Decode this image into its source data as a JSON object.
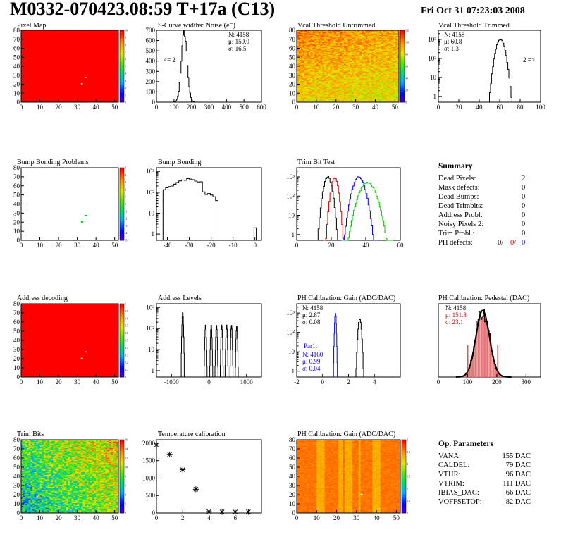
{
  "header": {
    "title": "M0332-070423.08:59 T+17a (C13)",
    "date": "Fri Oct 31 07:23:03 2008"
  },
  "colors": {
    "hot": "#ff0000",
    "blue": "#0000ff",
    "green": "#00cc00",
    "red": "#cc0000",
    "black": "#000000"
  },
  "chart_data": [
    {
      "id": "pixel-map",
      "type": "heatmap",
      "title": "Pixel Map",
      "xlim": [
        0,
        52
      ],
      "ylim": [
        0,
        80
      ],
      "xticks": [
        "0",
        "10",
        "20",
        "30",
        "40",
        "50"
      ],
      "yticks": [
        "0",
        "10",
        "20",
        "30",
        "40",
        "50",
        "60",
        "70",
        "80"
      ],
      "zlim": [
        0,
        10
      ],
      "fill_value": 10,
      "special_pixels": [
        {
          "x": 32,
          "y": 20,
          "value": 0
        },
        {
          "x": 34,
          "y": 27,
          "value": 0
        }
      ],
      "palette_ticks": [
        "0",
        "1",
        "2",
        "3",
        "4",
        "5",
        "6",
        "7",
        "8",
        "9",
        "10"
      ]
    },
    {
      "id": "scurve-noise",
      "type": "histogram",
      "title": "S-Curve widths: Noise (e⁻)",
      "xlim": [
        0,
        600
      ],
      "ylim": [
        0,
        700
      ],
      "xticks": [
        "0",
        "100",
        "200",
        "300",
        "400",
        "500",
        "600"
      ],
      "yticks": [
        "0",
        "100",
        "200",
        "300",
        "400",
        "500",
        "600",
        "700"
      ],
      "stats": {
        "N": "4158",
        "mu": "159.0",
        "sigma": "16.5"
      },
      "underflow_label": "<= 2",
      "peak": {
        "mean": 159.0,
        "sigma": 16.5,
        "max": 680
      }
    },
    {
      "id": "vcal-untrimmed",
      "type": "heatmap",
      "title": "Vcal Threshold Untrimmed",
      "xlim": [
        0,
        52
      ],
      "ylim": [
        0,
        80
      ],
      "xticks": [
        "0",
        "10",
        "20",
        "30",
        "40",
        "50"
      ],
      "yticks": [
        "0",
        "10",
        "20",
        "30",
        "40",
        "50",
        "60",
        "70",
        "80"
      ],
      "zlim": [
        0,
        130
      ],
      "palette_ticks": [
        "0",
        "20",
        "40",
        "60",
        "80",
        "100",
        "120"
      ]
    },
    {
      "id": "vcal-trimmed",
      "type": "histogram",
      "title": "Vcal Threshold Trimmed",
      "log_y": true,
      "xlim": [
        0,
        100
      ],
      "ylim": [
        0.5,
        3000
      ],
      "xticks": [
        "0",
        "20",
        "40",
        "60",
        "80",
        "100"
      ],
      "ytick_labels": [
        "1",
        "10",
        "10²",
        "10³"
      ],
      "stats": {
        "N": "4158",
        "mu": "60.8",
        "sigma": "1.3"
      },
      "overflow_label": "2 =>",
      "peak": {
        "mean": 60.8,
        "sigma": 1.3,
        "max": 1000
      }
    },
    {
      "id": "bump-bonding-problems",
      "type": "heatmap",
      "title": "Bump Bonding Problems",
      "xlim": [
        0,
        52
      ],
      "ylim": [
        0,
        80
      ],
      "xticks": [
        "0",
        "10",
        "20",
        "30",
        "40",
        "50"
      ],
      "yticks": [
        "0",
        "10",
        "20",
        "30",
        "40",
        "50",
        "60",
        "70",
        "80"
      ],
      "zlim": [
        -5,
        5
      ],
      "fill_value": null,
      "special_pixels": [
        {
          "x": 32,
          "y": 20,
          "value": 0
        },
        {
          "x": 34,
          "y": 27,
          "value": 0
        }
      ],
      "palette_ticks": [
        "-5",
        "-4",
        "-3",
        "-2",
        "-1",
        "0",
        "1",
        "2",
        "3",
        "4",
        "5"
      ]
    },
    {
      "id": "bump-bonding",
      "type": "histogram",
      "title": "Bump Bonding",
      "log_y": true,
      "xlim": [
        -45,
        3
      ],
      "ylim": [
        0.5,
        1500
      ],
      "xticks": [
        "-40",
        "-30",
        "-20",
        "-10",
        "0"
      ],
      "ytick_labels": [
        "1",
        "10",
        "10²",
        "10³"
      ],
      "broad": {
        "lo": -42,
        "hi": -17,
        "max": 400
      },
      "spike": {
        "x": 0,
        "value": 2
      }
    },
    {
      "id": "trim-bit-test",
      "type": "histogram",
      "title": "Trim Bit Test",
      "log_y": true,
      "xlim": [
        0,
        60
      ],
      "ylim": [
        0.5,
        3000
      ],
      "xticks": [
        "0",
        "20",
        "40",
        "60"
      ],
      "ytick_labels": [
        "1",
        "10",
        "10²",
        "10³"
      ],
      "series": [
        {
          "color": "#000000",
          "mean": 18,
          "sigma": 1.5,
          "max": 1000
        },
        {
          "color": "#cc0000",
          "mean": 22,
          "sigma": 1.3,
          "max": 900
        },
        {
          "color": "#0000ff",
          "mean": 36,
          "sigma": 2.2,
          "max": 1000
        },
        {
          "color": "#00cc00",
          "mean": 41,
          "sigma": 3.0,
          "max": 500
        }
      ]
    },
    {
      "id": "address-decoding",
      "type": "heatmap",
      "title": "Address decoding",
      "xlim": [
        0,
        52
      ],
      "ylim": [
        0,
        80
      ],
      "xticks": [
        "0",
        "10",
        "20",
        "30",
        "40",
        "50"
      ],
      "yticks": [
        "0",
        "10",
        "20",
        "30",
        "40",
        "50",
        "60",
        "70",
        "80"
      ],
      "zlim": [
        0,
        1
      ],
      "fill_value": 1,
      "special_pixels": [
        {
          "x": 32,
          "y": 20,
          "value": 0
        },
        {
          "x": 34,
          "y": 27,
          "value": 0
        }
      ],
      "palette_ticks": [
        "0",
        "0.1",
        "0.2",
        "0.3",
        "0.4",
        "0.5",
        "0.6",
        "0.7",
        "0.8",
        "0.9",
        "1"
      ]
    },
    {
      "id": "address-levels",
      "type": "histogram",
      "title": "Address Levels",
      "log_y": true,
      "xlim": [
        -1400,
        1400
      ],
      "ylim": [
        0.5,
        1500
      ],
      "xticks": [
        "-1000",
        "0",
        "1000"
      ],
      "ytick_labels": [
        "1",
        "10",
        "10²",
        "10³"
      ],
      "peaks": [
        {
          "x": -700,
          "max": 600
        },
        {
          "x": -90,
          "max": 150
        },
        {
          "x": 60,
          "max": 150
        },
        {
          "x": 200,
          "max": 150
        },
        {
          "x": 340,
          "max": 150
        },
        {
          "x": 470,
          "max": 150
        },
        {
          "x": 600,
          "max": 150
        },
        {
          "x": 740,
          "max": 130
        }
      ]
    },
    {
      "id": "ph-gain",
      "type": "histogram",
      "title": "PH Calibration: Gain (ADC/DAC)",
      "log_y": true,
      "xlim": [
        -2,
        6
      ],
      "ylim": [
        0.5,
        3000
      ],
      "xticks": [
        "-2",
        "0",
        "2",
        "4"
      ],
      "ytick_labels": [
        "1",
        "10",
        "10²",
        "10³"
      ],
      "stats": {
        "N": "4158",
        "mu": "2.87",
        "sigma": "0.08"
      },
      "par1": {
        "label": "Par1:",
        "N": "4160",
        "mu": "0.99",
        "sigma": "0.04"
      },
      "series": [
        {
          "color": "#000000",
          "mean": 2.87,
          "sigma": 0.08,
          "max": 500
        },
        {
          "color": "#0000ff",
          "mean": 0.99,
          "sigma": 0.04,
          "max": 1000
        }
      ]
    },
    {
      "id": "ph-pedestal",
      "type": "histogram",
      "title": "PH Calibration: Pedestal (DAC)",
      "xlim": [
        0,
        350
      ],
      "ylim": [
        0,
        220
      ],
      "xticks": [
        "0",
        "100",
        "200",
        "300"
      ],
      "stats": {
        "N": "4158",
        "mu": "151.8",
        "sigma": "23.1"
      },
      "peak": {
        "mean": 151.8,
        "sigma": 23.1,
        "max": 200
      },
      "markers": [
        101,
        203
      ]
    },
    {
      "id": "trim-bits",
      "type": "heatmap",
      "title": "Trim Bits",
      "xlim": [
        0,
        52
      ],
      "ylim": [
        0,
        80
      ],
      "xticks": [
        "0",
        "10",
        "20",
        "30",
        "40",
        "50"
      ],
      "yticks": [
        "0",
        "10",
        "20",
        "30",
        "40",
        "50",
        "60",
        "70",
        "80"
      ],
      "zlim": [
        0,
        16
      ],
      "palette_ticks": [
        "0",
        "2",
        "4",
        "6",
        "8",
        "10",
        "12",
        "14",
        "16"
      ]
    },
    {
      "id": "temperature-calibration",
      "type": "scatter",
      "title": "Temperature calibration",
      "xlim": [
        0,
        8
      ],
      "ylim": [
        0,
        2100
      ],
      "xticks": [
        "0",
        "2",
        "4",
        "6"
      ],
      "yticks": [
        "0",
        "500",
        "1000",
        "1500",
        "2000"
      ],
      "x": [
        0,
        1,
        2,
        3,
        4,
        5,
        6,
        7
      ],
      "y": [
        1950,
        1680,
        1240,
        680,
        40,
        30,
        30,
        30
      ]
    },
    {
      "id": "ph-gain-map",
      "type": "heatmap",
      "title": "PH Calibration: Gain (ADC/DAC)",
      "xlim": [
        0,
        52
      ],
      "ylim": [
        0,
        80
      ],
      "xticks": [
        "0",
        "10",
        "20",
        "30",
        "40",
        "50"
      ],
      "yticks": [
        "0",
        "10",
        "20",
        "30",
        "40",
        "50",
        "60",
        "70",
        "80"
      ],
      "zlim": [
        0,
        3
      ],
      "palette_ticks": [
        "0",
        "0.5",
        "1",
        "1.5",
        "2",
        "2.5",
        "3"
      ]
    }
  ],
  "summary": {
    "title": "Summary",
    "rows": [
      {
        "label": "Dead Pixels:",
        "value": "2"
      },
      {
        "label": "Mask defects:",
        "value": "0"
      },
      {
        "label": "Dead Bumps:",
        "value": "0"
      },
      {
        "label": "Dead Trimbits:",
        "value": "0"
      },
      {
        "label": "Address Probl:",
        "value": "0"
      },
      {
        "label": "Noisy Pixels 2:",
        "value": "0"
      },
      {
        "label": "Trim Probl.:",
        "value": "0"
      }
    ],
    "ph_defects": {
      "label": "PH defects:",
      "v1": "0/",
      "v2": "0/",
      "v3": "0"
    }
  },
  "op_params": {
    "title": "Op. Parameters",
    "rows": [
      {
        "label": "VANA:",
        "value": "155 DAC"
      },
      {
        "label": "CALDEL:",
        "value": "79 DAC"
      },
      {
        "label": "VTHR:",
        "value": "96 DAC"
      },
      {
        "label": "VTRIM:",
        "value": "111 DAC"
      },
      {
        "label": "IBIAS_DAC:",
        "value": "66 DAC"
      },
      {
        "label": "VOFFSETOP:",
        "value": "82 DAC"
      }
    ]
  }
}
